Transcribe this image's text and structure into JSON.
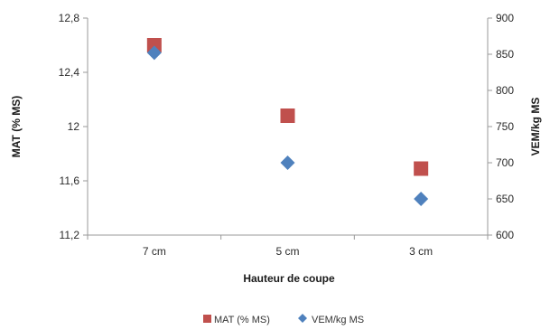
{
  "chart_data": {
    "type": "scatter",
    "categories": [
      "7 cm",
      "5 cm",
      "3 cm"
    ],
    "xlabel": "Hauteur de coupe",
    "y_left": {
      "label": "MAT (% MS)",
      "range": [
        11.2,
        12.8
      ],
      "ticks": [
        11.2,
        11.6,
        12,
        12.4,
        12.8
      ],
      "tick_labels": [
        "11,2",
        "11,6",
        "12",
        "12,4",
        "12,8"
      ]
    },
    "y_right": {
      "label": "VEM/kg MS",
      "range": [
        600,
        900
      ],
      "ticks": [
        600,
        650,
        700,
        750,
        800,
        850,
        900
      ],
      "tick_labels": [
        "600",
        "650",
        "700",
        "750",
        "800",
        "850",
        "900"
      ]
    },
    "series": [
      {
        "name": "MAT (% MS)",
        "axis": "left",
        "marker": "square",
        "color": "#c0504d",
        "values": [
          12.6,
          12.08,
          11.69
        ]
      },
      {
        "name": "VEM/kg MS",
        "axis": "right",
        "marker": "diamond",
        "color": "#4f81bd",
        "values": [
          852,
          700,
          650
        ]
      }
    ],
    "grid": false,
    "legend_position": "bottom"
  }
}
